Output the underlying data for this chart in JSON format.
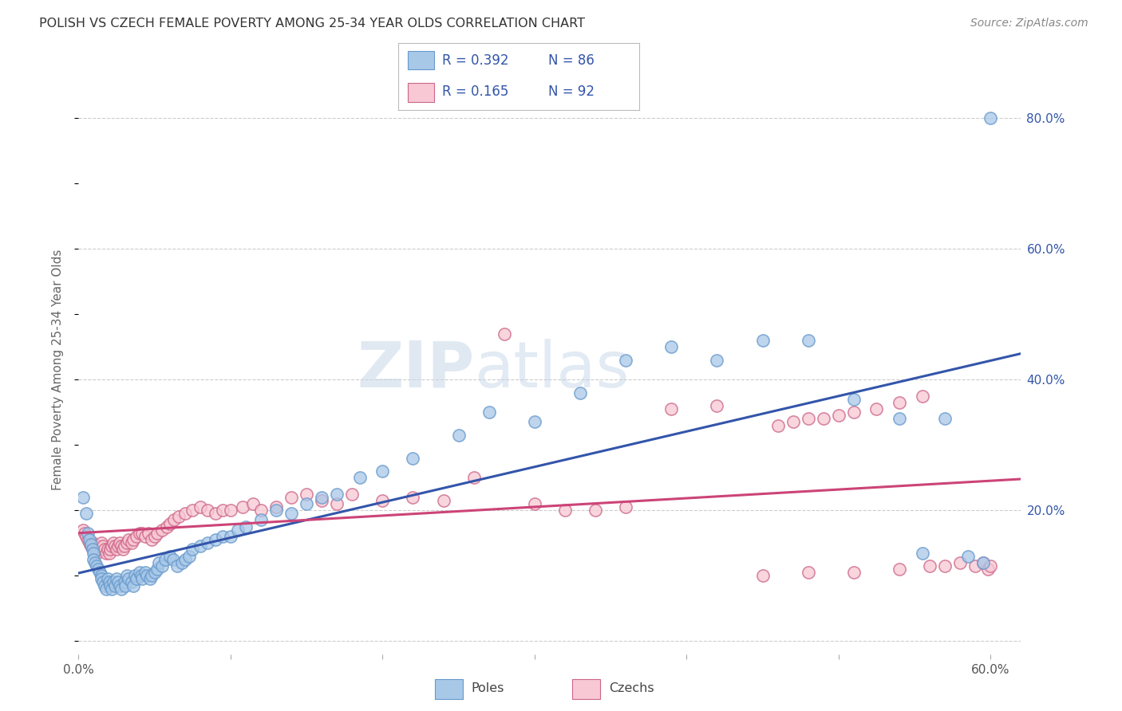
{
  "title": "POLISH VS CZECH FEMALE POVERTY AMONG 25-34 YEAR OLDS CORRELATION CHART",
  "source": "Source: ZipAtlas.com",
  "ylabel": "Female Poverty Among 25-34 Year Olds",
  "xlim": [
    0.0,
    0.62
  ],
  "ylim": [
    -0.02,
    0.85
  ],
  "poles_color": "#a8c8e8",
  "poles_edge_color": "#6699cc",
  "czechs_color": "#f8c8d4",
  "czechs_edge_color": "#cc6688",
  "trend_poles_color": "#3355aa",
  "trend_czechs_color": "#cc4477",
  "R_poles": "0.392",
  "N_poles": "86",
  "R_czechs": "0.165",
  "N_czechs": "92",
  "legend_color": "#3355aa",
  "background_color": "#ffffff",
  "watermark_zip": "ZIP",
  "watermark_atlas": "atlas",
  "poles_x": [
    0.003,
    0.005,
    0.006,
    0.007,
    0.008,
    0.009,
    0.01,
    0.01,
    0.011,
    0.012,
    0.013,
    0.014,
    0.015,
    0.015,
    0.016,
    0.017,
    0.018,
    0.019,
    0.02,
    0.021,
    0.022,
    0.023,
    0.024,
    0.025,
    0.026,
    0.027,
    0.028,
    0.03,
    0.031,
    0.032,
    0.033,
    0.035,
    0.036,
    0.037,
    0.038,
    0.04,
    0.041,
    0.042,
    0.044,
    0.045,
    0.047,
    0.048,
    0.05,
    0.052,
    0.053,
    0.055,
    0.057,
    0.06,
    0.062,
    0.065,
    0.068,
    0.07,
    0.073,
    0.075,
    0.08,
    0.085,
    0.09,
    0.095,
    0.1,
    0.105,
    0.11,
    0.12,
    0.13,
    0.14,
    0.15,
    0.16,
    0.17,
    0.185,
    0.2,
    0.22,
    0.25,
    0.27,
    0.3,
    0.33,
    0.36,
    0.39,
    0.42,
    0.45,
    0.48,
    0.51,
    0.54,
    0.57,
    0.585,
    0.595,
    0.555,
    0.6
  ],
  "poles_y": [
    0.22,
    0.195,
    0.165,
    0.155,
    0.148,
    0.14,
    0.135,
    0.125,
    0.12,
    0.115,
    0.11,
    0.105,
    0.1,
    0.095,
    0.09,
    0.085,
    0.08,
    0.095,
    0.09,
    0.085,
    0.08,
    0.09,
    0.085,
    0.095,
    0.09,
    0.085,
    0.08,
    0.09,
    0.085,
    0.1,
    0.095,
    0.09,
    0.085,
    0.1,
    0.095,
    0.105,
    0.1,
    0.095,
    0.105,
    0.1,
    0.095,
    0.1,
    0.105,
    0.11,
    0.12,
    0.115,
    0.125,
    0.13,
    0.125,
    0.115,
    0.12,
    0.125,
    0.13,
    0.14,
    0.145,
    0.15,
    0.155,
    0.16,
    0.16,
    0.17,
    0.175,
    0.185,
    0.2,
    0.195,
    0.21,
    0.22,
    0.225,
    0.25,
    0.26,
    0.28,
    0.315,
    0.35,
    0.335,
    0.38,
    0.43,
    0.45,
    0.43,
    0.46,
    0.46,
    0.37,
    0.34,
    0.34,
    0.13,
    0.12,
    0.135,
    0.8
  ],
  "czechs_x": [
    0.003,
    0.004,
    0.005,
    0.006,
    0.007,
    0.008,
    0.009,
    0.01,
    0.011,
    0.012,
    0.013,
    0.014,
    0.015,
    0.016,
    0.017,
    0.018,
    0.019,
    0.02,
    0.021,
    0.022,
    0.023,
    0.024,
    0.025,
    0.026,
    0.027,
    0.028,
    0.029,
    0.03,
    0.032,
    0.033,
    0.035,
    0.036,
    0.038,
    0.04,
    0.042,
    0.044,
    0.046,
    0.048,
    0.05,
    0.052,
    0.055,
    0.058,
    0.06,
    0.063,
    0.066,
    0.07,
    0.075,
    0.08,
    0.085,
    0.09,
    0.095,
    0.1,
    0.108,
    0.115,
    0.12,
    0.13,
    0.14,
    0.15,
    0.16,
    0.17,
    0.18,
    0.2,
    0.22,
    0.24,
    0.26,
    0.28,
    0.3,
    0.32,
    0.34,
    0.36,
    0.39,
    0.42,
    0.45,
    0.48,
    0.51,
    0.54,
    0.56,
    0.57,
    0.58,
    0.59,
    0.595,
    0.598,
    0.6,
    0.555,
    0.54,
    0.525,
    0.51,
    0.5,
    0.49,
    0.48,
    0.47,
    0.46
  ],
  "czechs_y": [
    0.17,
    0.165,
    0.16,
    0.155,
    0.15,
    0.145,
    0.15,
    0.145,
    0.14,
    0.135,
    0.14,
    0.145,
    0.15,
    0.145,
    0.14,
    0.135,
    0.14,
    0.135,
    0.14,
    0.145,
    0.15,
    0.145,
    0.14,
    0.145,
    0.15,
    0.145,
    0.14,
    0.145,
    0.15,
    0.155,
    0.15,
    0.155,
    0.16,
    0.165,
    0.165,
    0.16,
    0.165,
    0.155,
    0.16,
    0.165,
    0.17,
    0.175,
    0.18,
    0.185,
    0.19,
    0.195,
    0.2,
    0.205,
    0.2,
    0.195,
    0.2,
    0.2,
    0.205,
    0.21,
    0.2,
    0.205,
    0.22,
    0.225,
    0.215,
    0.21,
    0.225,
    0.215,
    0.22,
    0.215,
    0.25,
    0.47,
    0.21,
    0.2,
    0.2,
    0.205,
    0.355,
    0.36,
    0.1,
    0.105,
    0.105,
    0.11,
    0.115,
    0.115,
    0.12,
    0.115,
    0.12,
    0.11,
    0.115,
    0.375,
    0.365,
    0.355,
    0.35,
    0.345,
    0.34,
    0.34,
    0.335,
    0.33
  ]
}
